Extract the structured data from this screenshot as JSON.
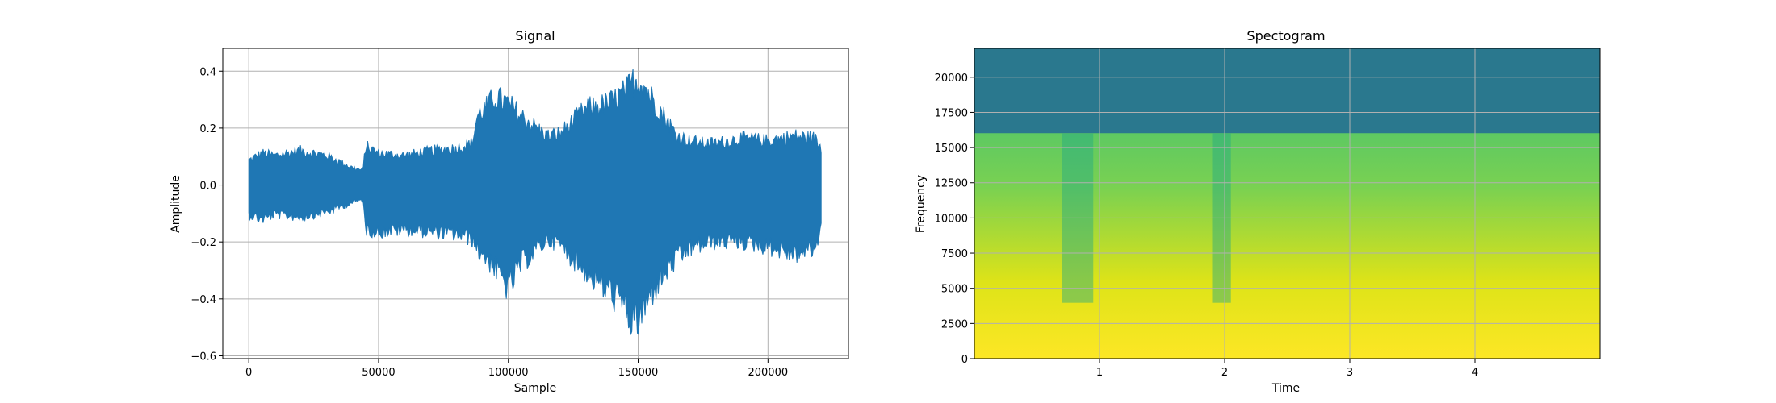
{
  "colors": {
    "signal_line": "#1f77b4",
    "grid": "#b0b0b0",
    "spectrogram_top": "#2a788e",
    "spectrogram_band_mid": "#7ad151",
    "spectrogram_low": "#dde318",
    "spectrogram_hot": "#fde725"
  },
  "chart_data": [
    {
      "type": "line",
      "title": "Signal",
      "xlabel": "Sample",
      "ylabel": "Amplitude",
      "xlim": [
        -10000,
        231000
      ],
      "ylim": [
        -0.61,
        0.48
      ],
      "grid": true,
      "xticks": [
        0,
        50000,
        100000,
        150000,
        200000
      ],
      "xtick_labels": [
        "0",
        "50000",
        "100000",
        "150000",
        "200000"
      ],
      "yticks": [
        -0.6,
        -0.4,
        -0.2,
        0.0,
        0.2,
        0.4
      ],
      "ytick_labels": [
        "−0.6",
        "−0.4",
        "−0.2",
        "0.0",
        "0.2",
        "0.4"
      ],
      "series": [
        {
          "envelope_x": [
            0,
            5000,
            10000,
            20000,
            30000,
            40000,
            44000,
            45000,
            50000,
            60000,
            70000,
            80000,
            86000,
            88000,
            92000,
            95000,
            100000,
            105000,
            110000,
            115000,
            120000,
            125000,
            130000,
            135000,
            140000,
            145000,
            148000,
            150000,
            152000,
            155000,
            160000,
            165000,
            170000,
            175000,
            180000,
            190000,
            200000,
            210000,
            218000,
            220500
          ],
          "envelope_upper": [
            0.1,
            0.13,
            0.12,
            0.14,
            0.12,
            0.07,
            0.06,
            0.16,
            0.13,
            0.12,
            0.14,
            0.15,
            0.17,
            0.28,
            0.32,
            0.36,
            0.33,
            0.28,
            0.24,
            0.2,
            0.21,
            0.26,
            0.31,
            0.32,
            0.34,
            0.38,
            0.42,
            0.43,
            0.41,
            0.36,
            0.28,
            0.2,
            0.18,
            0.17,
            0.17,
            0.19,
            0.18,
            0.2,
            0.19,
            0.15
          ],
          "envelope_lower": [
            -0.12,
            -0.14,
            -0.12,
            -0.13,
            -0.11,
            -0.07,
            -0.06,
            -0.18,
            -0.19,
            -0.18,
            -0.19,
            -0.2,
            -0.22,
            -0.26,
            -0.3,
            -0.34,
            -0.42,
            -0.32,
            -0.27,
            -0.22,
            -0.24,
            -0.3,
            -0.35,
            -0.4,
            -0.44,
            -0.5,
            -0.56,
            -0.55,
            -0.52,
            -0.44,
            -0.36,
            -0.3,
            -0.26,
            -0.24,
            -0.23,
            -0.23,
            -0.25,
            -0.28,
            -0.26,
            -0.18
          ]
        }
      ]
    },
    {
      "type": "heatmap",
      "title": "Spectogram",
      "xlabel": "Time",
      "ylabel": "Frequency",
      "xlim": [
        0,
        5.0
      ],
      "ylim": [
        0,
        22050
      ],
      "grid": true,
      "xticks": [
        1,
        2,
        3,
        4
      ],
      "xtick_labels": [
        "1",
        "2",
        "3",
        "4"
      ],
      "yticks": [
        0,
        2500,
        5000,
        7500,
        10000,
        12500,
        15000,
        17500,
        20000
      ],
      "ytick_labels": [
        "0",
        "2500",
        "5000",
        "7500",
        "10000",
        "12500",
        "15000",
        "17500",
        "20000"
      ],
      "cutoff_frequency": 16000,
      "quiet_intervals": [
        [
          0.7,
          0.95
        ],
        [
          1.9,
          2.05
        ]
      ]
    }
  ]
}
